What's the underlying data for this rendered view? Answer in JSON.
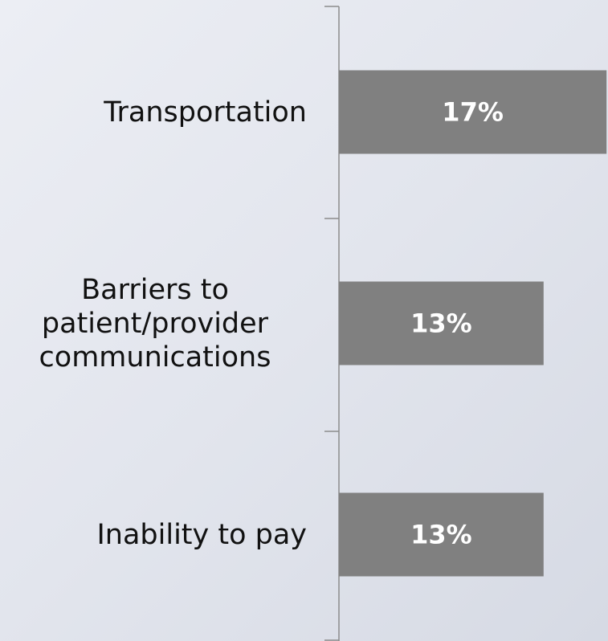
{
  "chart_data": {
    "type": "bar",
    "orientation": "horizontal",
    "categories": [
      "Transportation",
      "Barriers to patient/provider communications",
      "Inability to pay"
    ],
    "values": [
      17,
      13,
      13
    ],
    "value_labels": [
      "17%",
      "13%",
      "13%"
    ],
    "color": "#808080"
  }
}
